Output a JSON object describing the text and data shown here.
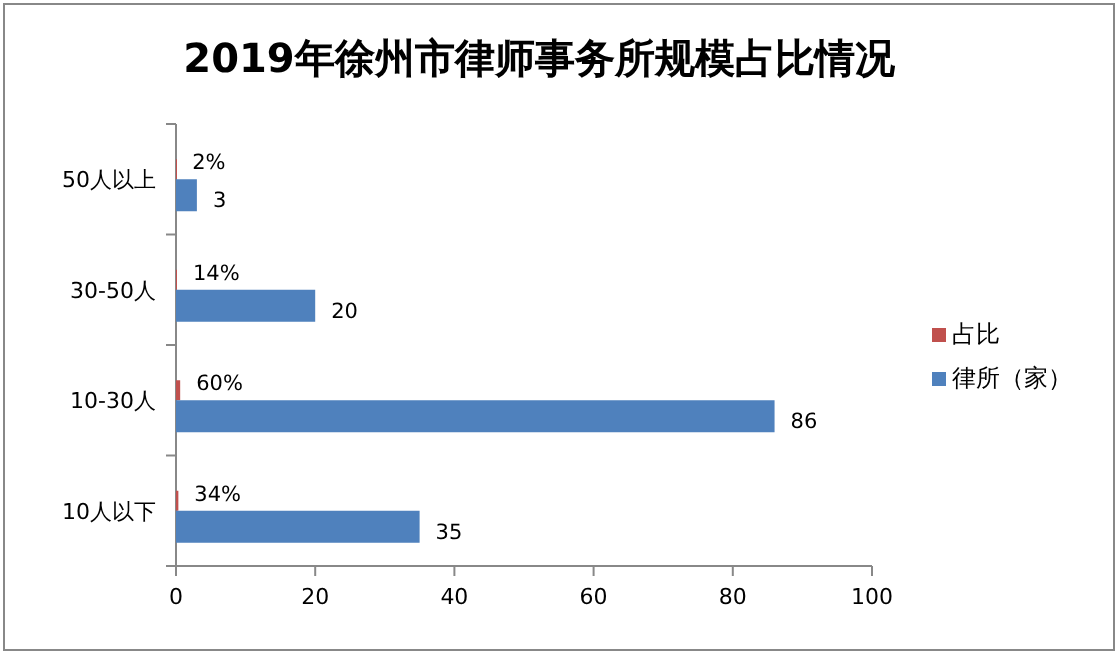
{
  "chart_data": {
    "type": "bar",
    "orientation": "horizontal",
    "title": "2019年徐州市律师事务所规模占比情况",
    "categories": [
      "50人以上",
      "30-50人",
      "10-30人",
      "10人以下"
    ],
    "series": [
      {
        "name": "占比",
        "color": "#c0504d",
        "values": [
          0.02,
          0.14,
          0.6,
          0.34
        ],
        "value_labels": [
          "2%",
          "14%",
          "60%",
          "34%"
        ]
      },
      {
        "name": "律所（家）",
        "color": "#4f81bd",
        "values": [
          3,
          20,
          86,
          35
        ],
        "value_labels": [
          "3",
          "20",
          "86",
          "35"
        ]
      }
    ],
    "xlim": [
      0,
      100
    ],
    "xticks": [
      0,
      20,
      40,
      60,
      80,
      100
    ],
    "grid": false,
    "legend": "right"
  }
}
